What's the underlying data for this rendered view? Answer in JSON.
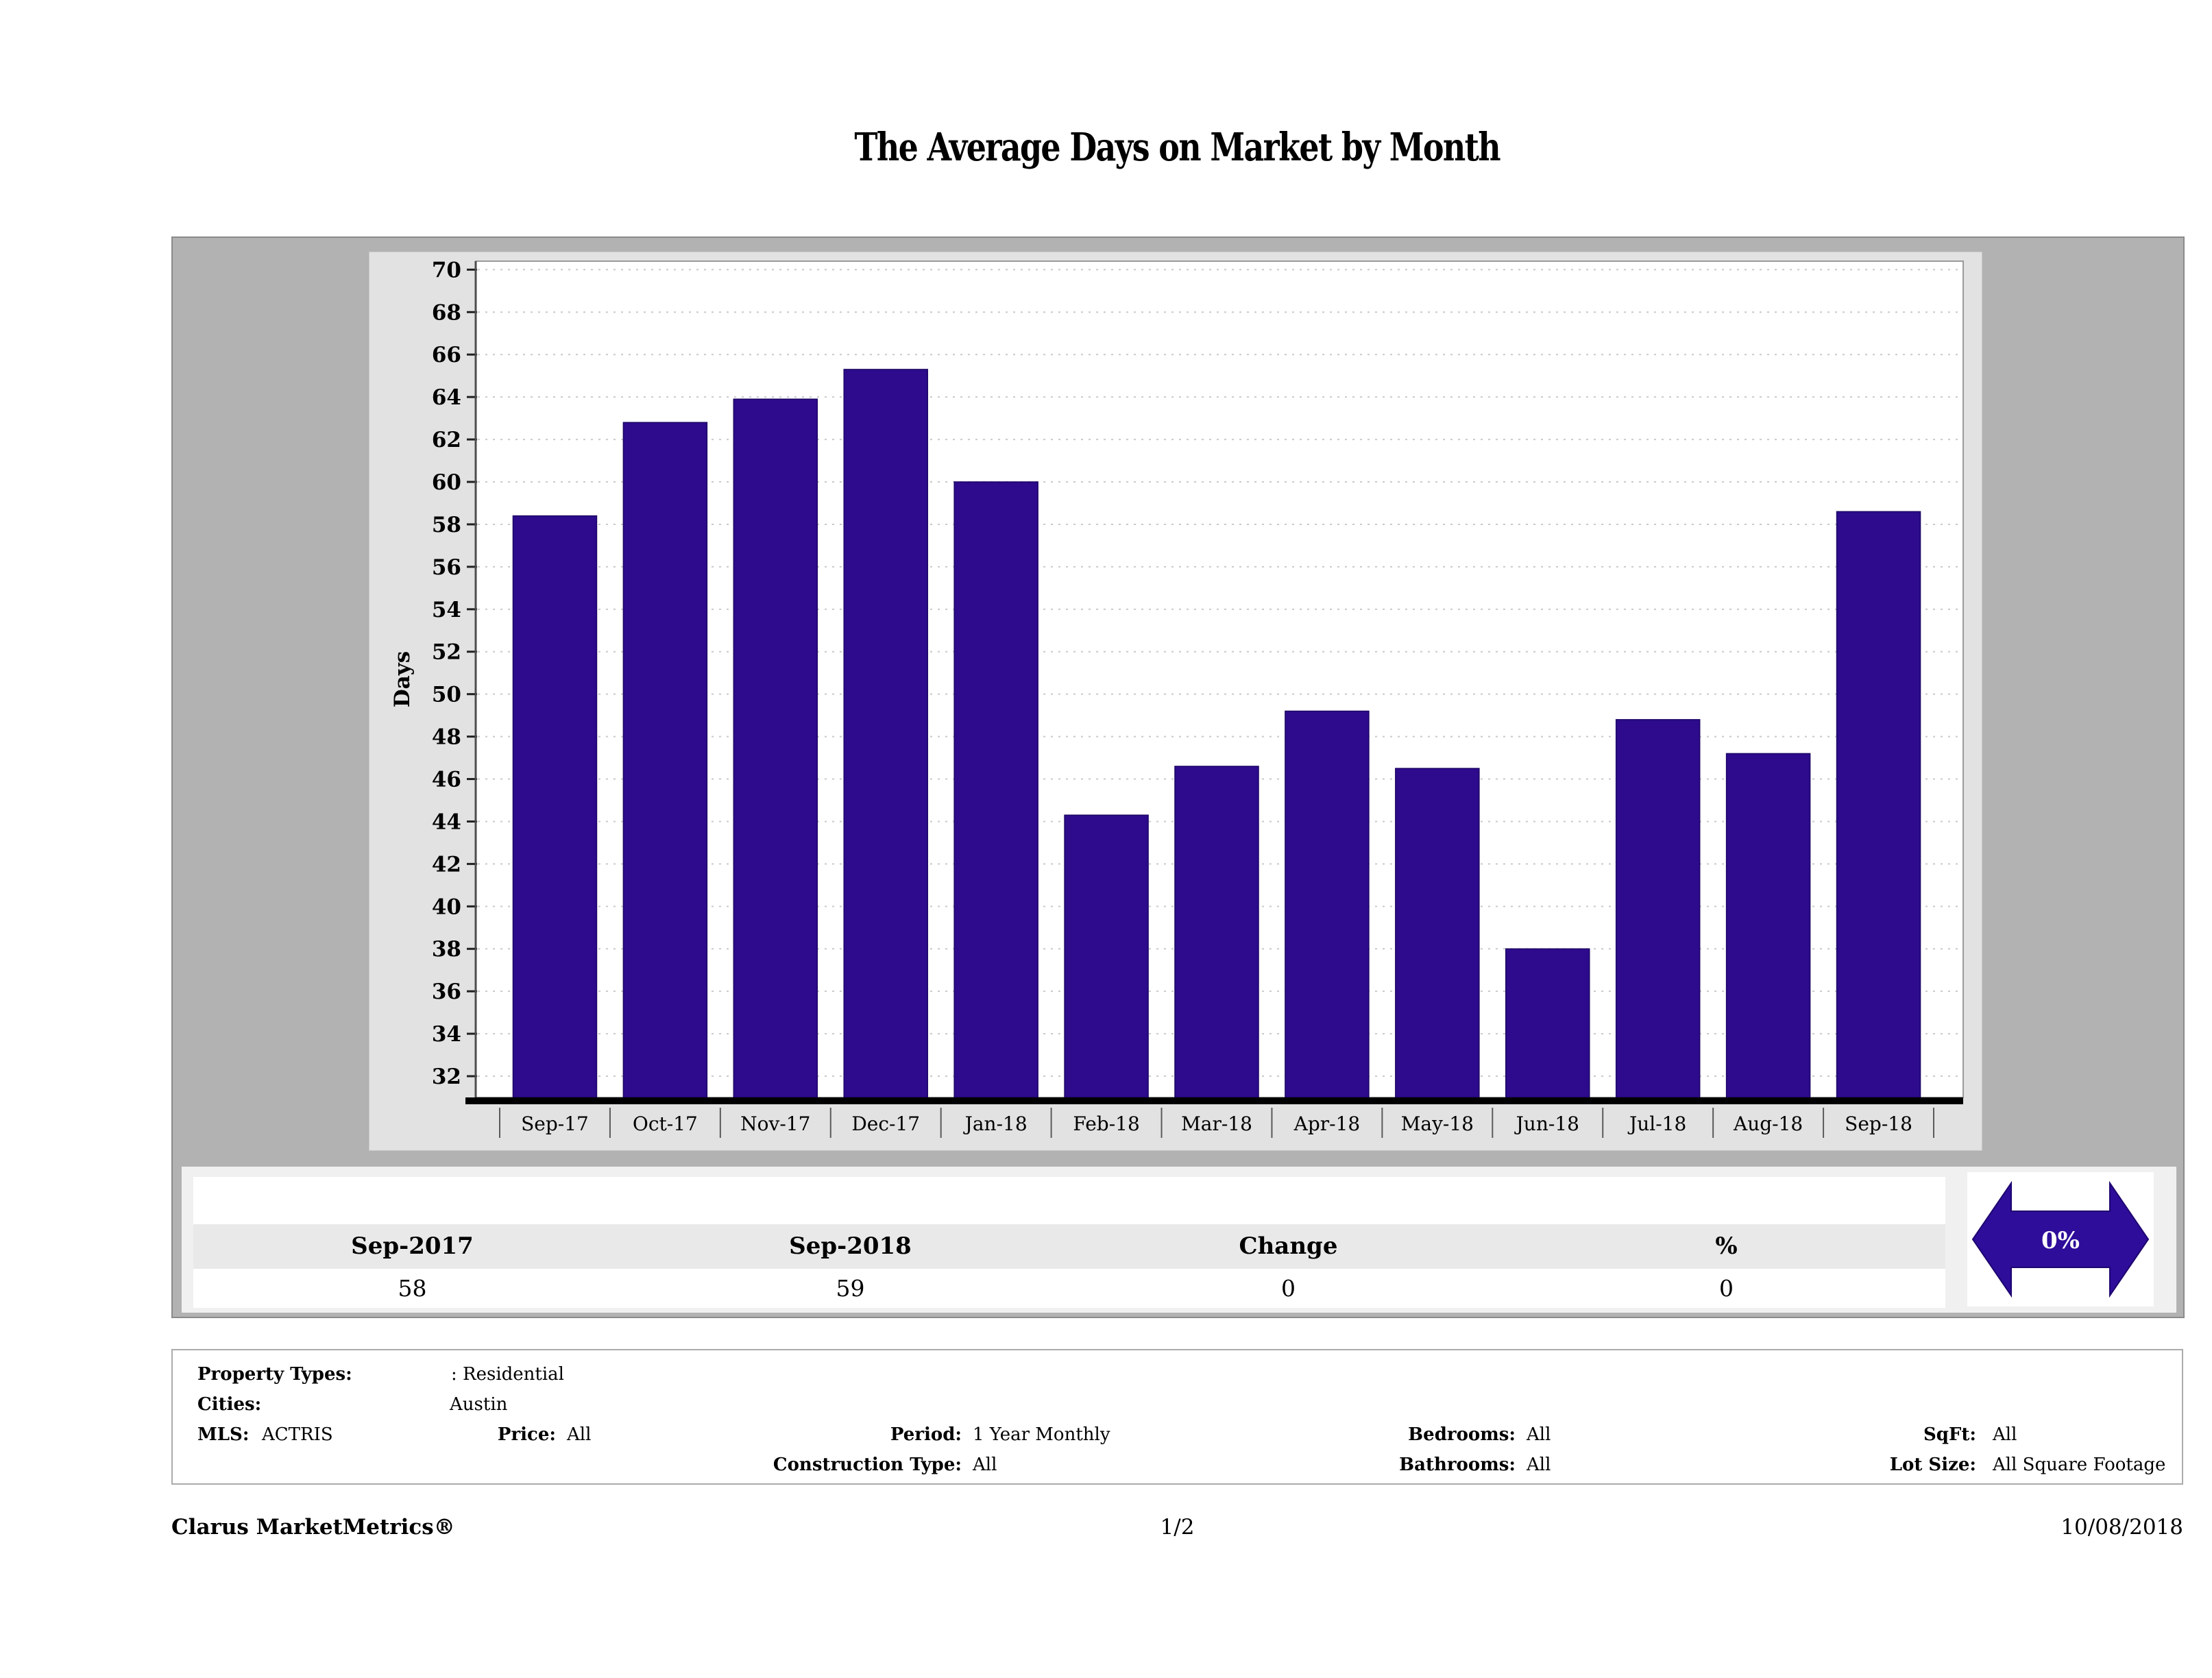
{
  "title": "The Average Days on Market by Month",
  "chart_data": {
    "type": "bar",
    "title": "The Average Days on Market by Month",
    "categories": [
      "Sep-17",
      "Oct-17",
      "Nov-17",
      "Dec-17",
      "Jan-18",
      "Feb-18",
      "Mar-18",
      "Apr-18",
      "May-18",
      "Jun-18",
      "Jul-18",
      "Aug-18",
      "Sep-18"
    ],
    "values": [
      58.4,
      62.8,
      63.9,
      65.3,
      60.0,
      44.3,
      46.6,
      49.2,
      46.5,
      38.0,
      48.8,
      47.2,
      58.6
    ],
    "xlabel": "",
    "ylabel": "Days",
    "ylim": [
      31,
      70.4
    ],
    "yticks": [
      32,
      34,
      36,
      38,
      40,
      42,
      44,
      46,
      48,
      50,
      52,
      54,
      56,
      58,
      60,
      62,
      64,
      66,
      68,
      70
    ],
    "grid": "horizontal-dashed",
    "legend": "none",
    "bar_color": "#2d0b8c",
    "bar_edge_color": "#1d0665",
    "plot_background": "#ffffff",
    "panel_background": "#e2e2e2"
  },
  "summary_table": {
    "columns": [
      "Sep-2017",
      "Sep-2018",
      "Change",
      "%"
    ],
    "values": [
      "58",
      "59",
      "0",
      "0"
    ],
    "change_badge": {
      "label": "0%",
      "shape": "left-right-double-arrow",
      "color": "#2e0d9a"
    }
  },
  "filters": {
    "property_types": {
      "label": "Property Types:",
      "value": ": Residential"
    },
    "cities": {
      "label": "Cities:",
      "value": "Austin"
    },
    "mls": {
      "label": "MLS:",
      "value": "ACTRIS"
    },
    "price": {
      "label": "Price:",
      "value": "All"
    },
    "period": {
      "label": "Period:",
      "value": "1 Year Monthly"
    },
    "construction_type": {
      "label": "Construction Type:",
      "value": "All"
    },
    "bedrooms": {
      "label": "Bedrooms:",
      "value": "All"
    },
    "bathrooms": {
      "label": "Bathrooms:",
      "value": "All"
    },
    "sqft": {
      "label": "SqFt:",
      "value": "All"
    },
    "lot_size": {
      "label": "Lot Size:",
      "value": "All Square Footage"
    }
  },
  "footer": {
    "brand": "Clarus MarketMetrics®",
    "page_indicator": "1/2",
    "date": "10/08/2018"
  }
}
